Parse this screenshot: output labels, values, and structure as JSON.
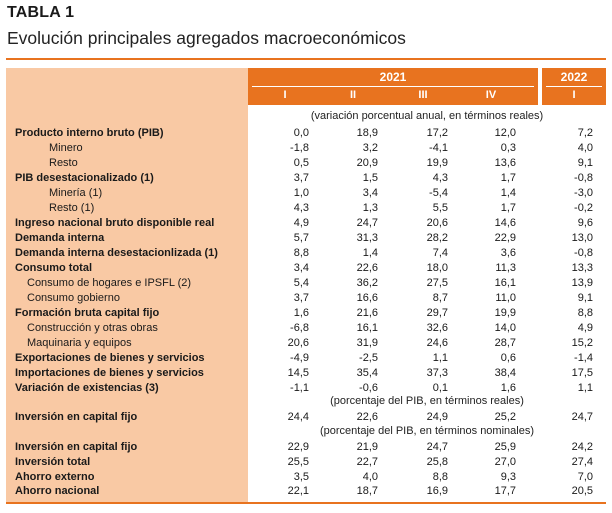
{
  "header": {
    "label": "TABLA 1",
    "title": "Evolución principales agregados macroeconómicos"
  },
  "columns": {
    "year_a": "2021",
    "year_b": "2022",
    "quarters": [
      "I",
      "II",
      "III",
      "IV",
      "I"
    ]
  },
  "units": {
    "u1": "(variación porcentual anual, en términos reales)",
    "u2": "(porcentaje del PIB, en términos reales)",
    "u3": "(porcentaje del PIB, en términos nominales)"
  },
  "rows": [
    {
      "label": "Producto interno bruto (PIB)",
      "style": "bold",
      "values": [
        "0,0",
        "18,9",
        "17,2",
        "12,0",
        "7,2"
      ]
    },
    {
      "label": "Minero",
      "style": "ind2",
      "values": [
        "-1,8",
        "3,2",
        "-4,1",
        "0,3",
        "4,0"
      ]
    },
    {
      "label": "Resto",
      "style": "ind2",
      "values": [
        "0,5",
        "20,9",
        "19,9",
        "13,6",
        "9,1"
      ]
    },
    {
      "label": "PIB desestacionalizado (1)",
      "style": "bold",
      "values": [
        "3,7",
        "1,5",
        "4,3",
        "1,7",
        "-0,8"
      ]
    },
    {
      "label": "Minería (1)",
      "style": "ind2",
      "values": [
        "1,0",
        "3,4",
        "-5,4",
        "1,4",
        "-3,0"
      ]
    },
    {
      "label": "Resto (1)",
      "style": "ind2",
      "values": [
        "4,3",
        "1,3",
        "5,5",
        "1,7",
        "-0,2"
      ]
    },
    {
      "label": "Ingreso nacional bruto disponible real",
      "style": "bold",
      "values": [
        "4,9",
        "24,7",
        "20,6",
        "14,6",
        "9,6"
      ]
    },
    {
      "label": "Demanda interna",
      "style": "bold",
      "values": [
        "5,7",
        "31,3",
        "28,2",
        "22,9",
        "13,0"
      ]
    },
    {
      "label": "Demanda interna desestacionlizada (1)",
      "style": "bold",
      "values": [
        "8,8",
        "1,4",
        "7,4",
        "3,6",
        "-0,8"
      ]
    },
    {
      "label": "Consumo total",
      "style": "bold",
      "values": [
        "3,4",
        "22,6",
        "18,0",
        "11,3",
        "13,3"
      ]
    },
    {
      "label": "Consumo de hogares e IPSFL (2)",
      "style": "ind1",
      "values": [
        "5,4",
        "36,2",
        "27,5",
        "16,1",
        "13,9"
      ]
    },
    {
      "label": "Consumo gobierno",
      "style": "ind1",
      "values": [
        "3,7",
        "16,6",
        "8,7",
        "11,0",
        "9,1"
      ]
    },
    {
      "label": "Formación bruta capital fijo",
      "style": "bold",
      "values": [
        "1,6",
        "21,6",
        "29,7",
        "19,9",
        "8,8"
      ]
    },
    {
      "label": "Construcción y otras obras",
      "style": "ind1",
      "values": [
        "-6,8",
        "16,1",
        "32,6",
        "14,0",
        "4,9"
      ]
    },
    {
      "label": "Maquinaria y equipos",
      "style": "ind1",
      "values": [
        "20,6",
        "31,9",
        "24,6",
        "28,7",
        "15,2"
      ]
    },
    {
      "label": "Exportaciones de bienes y servicios",
      "style": "bold",
      "values": [
        "-4,9",
        "-2,5",
        "1,1",
        "0,6",
        "-1,4"
      ]
    },
    {
      "label": "Importaciones de bienes y servicios",
      "style": "bold",
      "values": [
        "14,5",
        "35,4",
        "37,3",
        "38,4",
        "17,5"
      ]
    },
    {
      "label": "Variación de existencias (3)",
      "style": "bold",
      "values": [
        "-1,1",
        "-0,6",
        "0,1",
        "1,6",
        "1,1"
      ]
    },
    {
      "label": "Inversión en capital fijo",
      "style": "bold",
      "values": [
        "24,4",
        "22,6",
        "24,9",
        "25,2",
        "24,7"
      ]
    },
    {
      "label": "Inversión en capital fijo",
      "style": "bold",
      "values": [
        "22,9",
        "21,9",
        "24,7",
        "25,9",
        "24,2"
      ]
    },
    {
      "label": "Inversión total",
      "style": "bold",
      "values": [
        "25,5",
        "22,7",
        "25,8",
        "27,0",
        "27,4"
      ]
    },
    {
      "label": "Ahorro externo",
      "style": "bold",
      "values": [
        "3,5",
        "4,0",
        "8,8",
        "9,3",
        "7,0"
      ]
    },
    {
      "label": "Ahorro nacional",
      "style": "bold",
      "values": [
        "22,1",
        "18,7",
        "16,9",
        "17,7",
        "20,5"
      ]
    }
  ]
}
